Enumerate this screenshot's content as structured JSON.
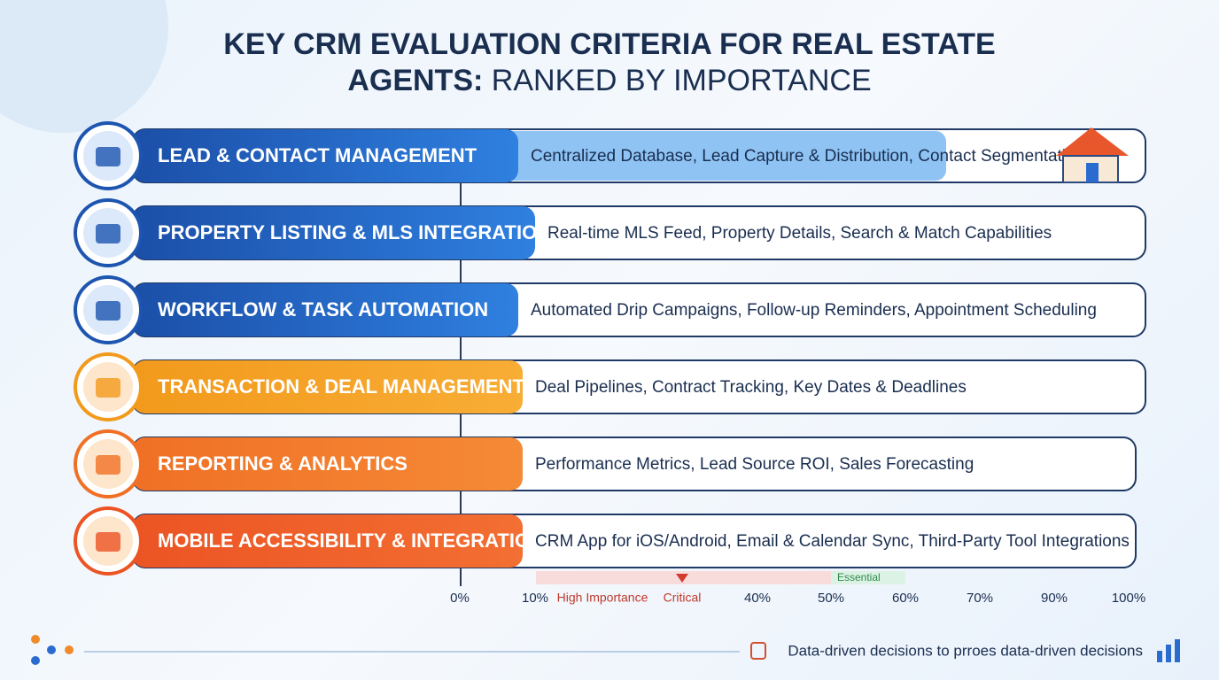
{
  "header": {
    "title_line1": "KEY CRM EVALUATION CRITERIA FOR REAL ESTATE",
    "title_line2_bold": "AGENTS:",
    "title_line2_rest": "RANKED BY IMPORTANCE"
  },
  "rows": [
    {
      "name": "LEAD & CONTACT MANAGEMENT",
      "description": "Centralized Database, Lead Capture & Distribution, Contact Segmentation"
    },
    {
      "name": "PROPERTY LISTING & MLS INTEGRATION",
      "description": "Real-time MLS Feed, Property Details, Search & Match Capabilities"
    },
    {
      "name": "WORKFLOW & TASK AUTOMATION",
      "description": "Automated Drip Campaigns, Follow-up Reminders, Appointment Scheduling"
    },
    {
      "name": "TRANSACTION & DEAL MANAGEMENT",
      "description": "Deal Pipelines, Contract Tracking, Key Dates & Deadlines"
    },
    {
      "name": "REPORTING & ANALYTICS",
      "description": "Performance Metrics, Lead Source ROI, Sales Forecasting"
    },
    {
      "name": "MOBILE ACCESSIBILITY & INTEGRATIONS",
      "description": "CRM App for iOS/Android, Email & Calendar Sync, Third-Party Tool Integrations"
    }
  ],
  "axis": {
    "labels": [
      "0%",
      "10%",
      "High Importance",
      "Critical",
      "40%",
      "50%",
      "60%",
      "70%",
      "90%",
      "100%"
    ],
    "marker": "Essential"
  },
  "footer": {
    "text": "Data-driven decisions to prroes data-driven decisions"
  }
}
